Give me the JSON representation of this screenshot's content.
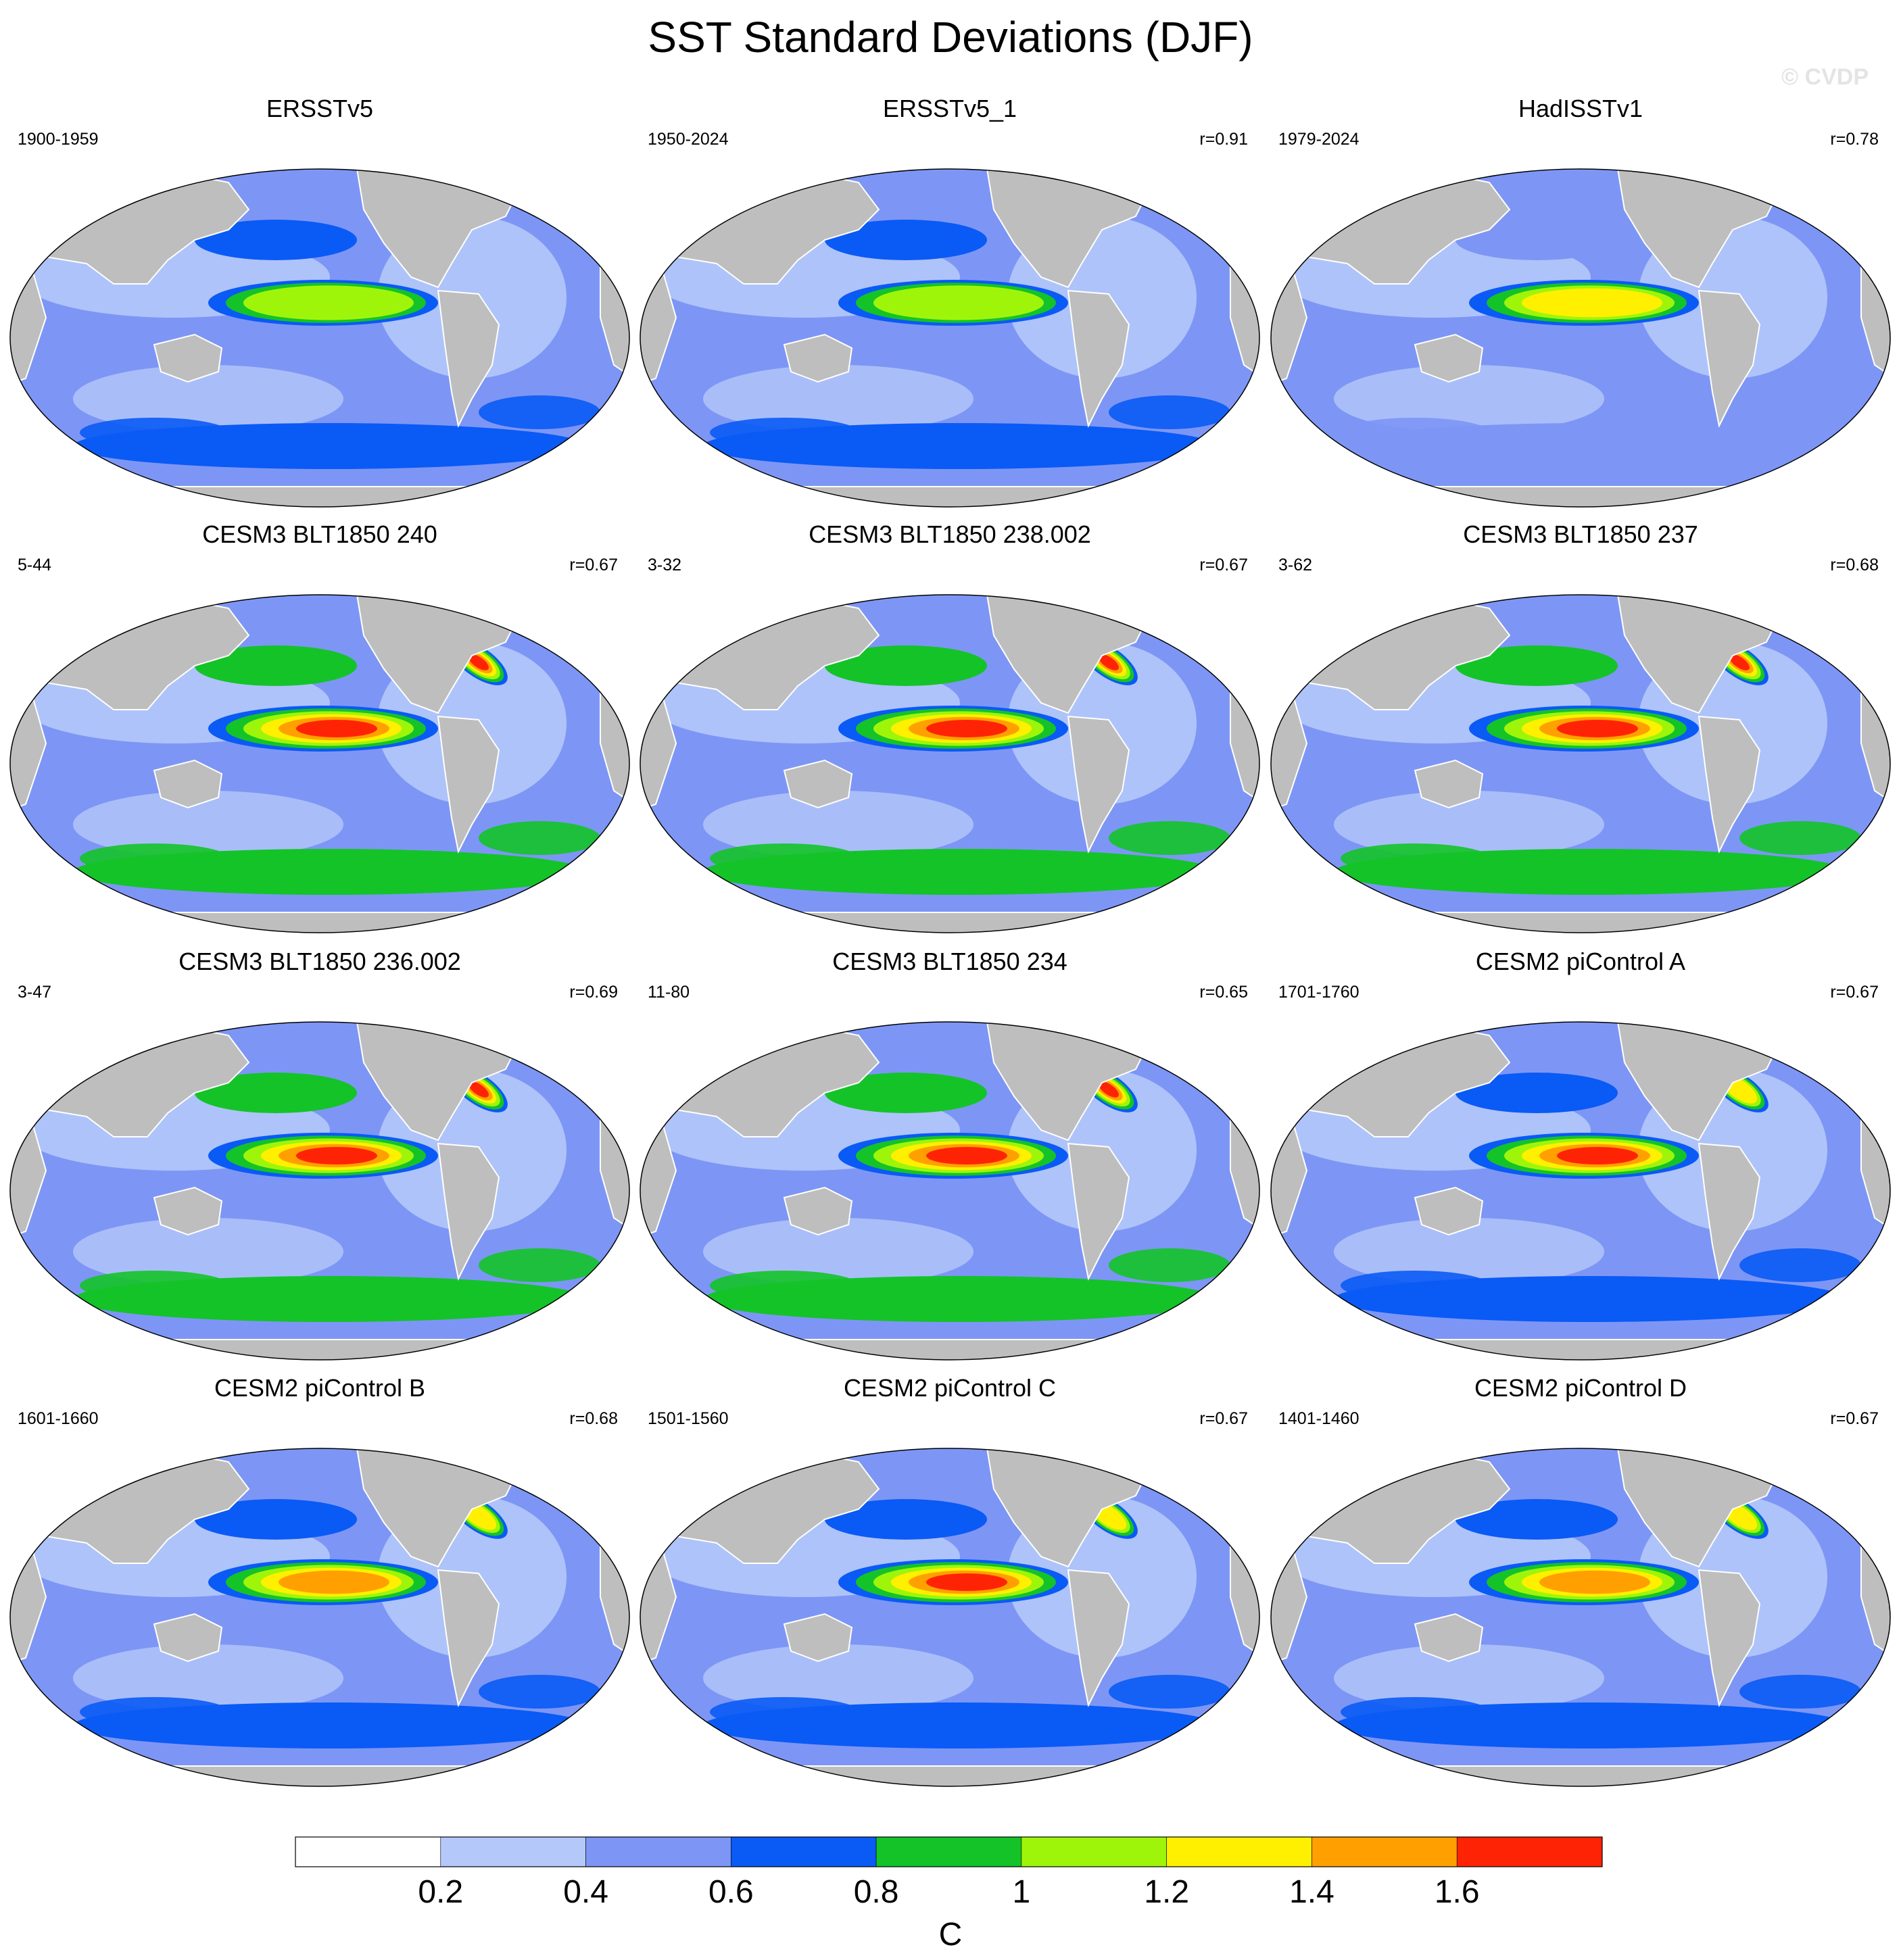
{
  "title": "SST Standard Deviations (DJF)",
  "watermark": "© CVDP",
  "palette": [
    "#ffffff",
    "#b4c8fa",
    "#7d96f5",
    "#0a5af5",
    "#14c328",
    "#9ff50a",
    "#fff000",
    "#ffa000",
    "#ff2305"
  ],
  "land_color": "#bebebe",
  "colorbar": {
    "labels": [
      "0.2",
      "0.4",
      "0.6",
      "0.8",
      "1",
      "1.2",
      "1.4",
      "1.6"
    ],
    "units": "C"
  },
  "panels": [
    {
      "title": "ERSSTv5",
      "years": "1900-1959",
      "corr": "",
      "enso_level": 5,
      "extratropical_level": 3,
      "north_atlantic_level": 2
    },
    {
      "title": "ERSSTv5_1",
      "years": "1950-2024",
      "corr": "r=0.91",
      "enso_level": 5,
      "extratropical_level": 3,
      "north_atlantic_level": 2
    },
    {
      "title": "HadISSTv1",
      "years": "1979-2024",
      "corr": "r=0.78",
      "enso_level": 6,
      "extratropical_level": 2,
      "north_atlantic_level": 2
    },
    {
      "title": "CESM3 BLT1850 240",
      "years": "5-44",
      "corr": "r=0.67",
      "enso_level": 8,
      "extratropical_level": 4,
      "north_atlantic_level": 8
    },
    {
      "title": "CESM3 BLT1850 238.002",
      "years": "3-32",
      "corr": "r=0.67",
      "enso_level": 8,
      "extratropical_level": 4,
      "north_atlantic_level": 8
    },
    {
      "title": "CESM3 BLT1850 237",
      "years": "3-62",
      "corr": "r=0.68",
      "enso_level": 8,
      "extratropical_level": 4,
      "north_atlantic_level": 8
    },
    {
      "title": "CESM3 BLT1850 236.002",
      "years": "3-47",
      "corr": "r=0.69",
      "enso_level": 8,
      "extratropical_level": 4,
      "north_atlantic_level": 8
    },
    {
      "title": "CESM3 BLT1850 234",
      "years": "11-80",
      "corr": "r=0.65",
      "enso_level": 8,
      "extratropical_level": 4,
      "north_atlantic_level": 8
    },
    {
      "title": "CESM2 piControl A",
      "years": "1701-1760",
      "corr": "r=0.67",
      "enso_level": 8,
      "extratropical_level": 3,
      "north_atlantic_level": 6
    },
    {
      "title": "CESM2 piControl B",
      "years": "1601-1660",
      "corr": "r=0.68",
      "enso_level": 7,
      "extratropical_level": 3,
      "north_atlantic_level": 6
    },
    {
      "title": "CESM2 piControl C",
      "years": "1501-1560",
      "corr": "r=0.67",
      "enso_level": 8,
      "extratropical_level": 3,
      "north_atlantic_level": 6
    },
    {
      "title": "CESM2 piControl D",
      "years": "1401-1460",
      "corr": "r=0.67",
      "enso_level": 7,
      "extratropical_level": 3,
      "north_atlantic_level": 6
    }
  ]
}
